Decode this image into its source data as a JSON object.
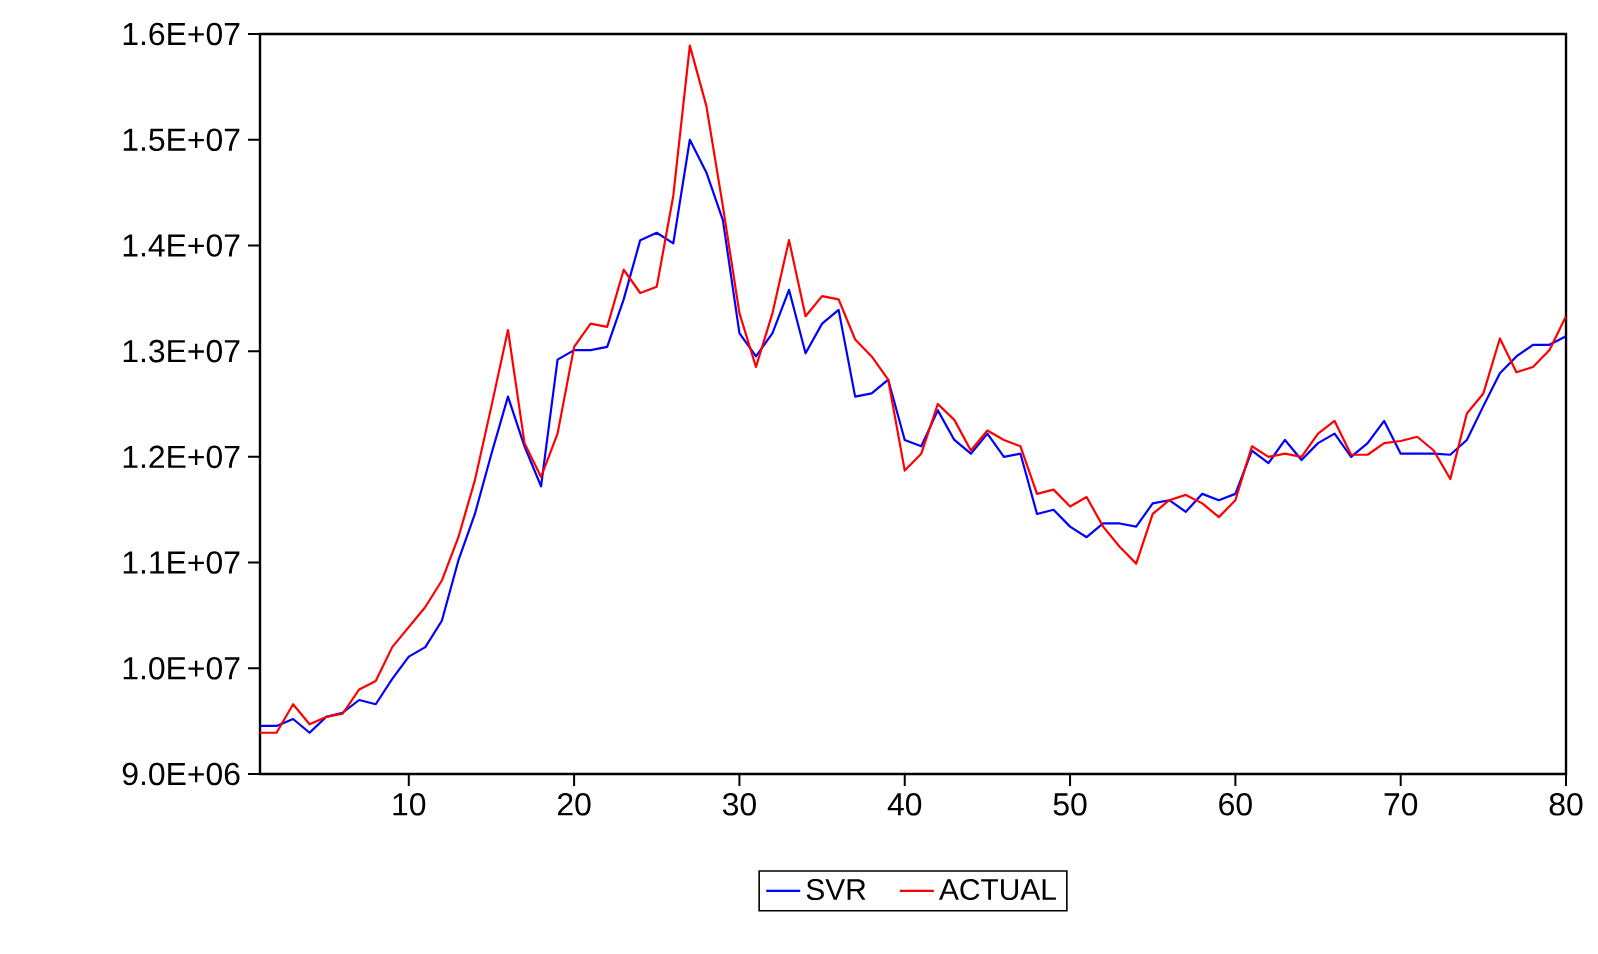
{
  "chart_data": {
    "type": "line",
    "x": [
      1,
      2,
      3,
      4,
      5,
      6,
      7,
      8,
      9,
      10,
      11,
      12,
      13,
      14,
      15,
      16,
      17,
      18,
      19,
      20,
      21,
      22,
      23,
      24,
      25,
      26,
      27,
      28,
      29,
      30,
      31,
      32,
      33,
      34,
      35,
      36,
      37,
      38,
      39,
      40,
      41,
      42,
      43,
      44,
      45,
      46,
      47,
      48,
      49,
      50,
      51,
      52,
      53,
      54,
      55,
      56,
      57,
      58,
      59,
      60,
      61,
      62,
      63,
      64,
      65,
      66,
      67,
      68,
      69,
      70,
      71,
      72,
      73,
      74,
      75,
      76,
      77,
      78,
      79,
      80
    ],
    "series": [
      {
        "name": "SVR",
        "color": "#0000ff",
        "values": [
          9455000,
          9455000,
          9520000,
          9390000,
          9540000,
          9580000,
          9700000,
          9660000,
          9900000,
          10110000,
          10200000,
          10450000,
          11020000,
          11460000,
          12030000,
          12570000,
          12100000,
          11720000,
          12920000,
          13010000,
          13010000,
          13040000,
          13490000,
          14050000,
          14120000,
          14020000,
          15000000,
          14690000,
          14240000,
          13170000,
          12950000,
          13170000,
          13580000,
          12980000,
          13260000,
          13390000,
          12570000,
          12600000,
          12730000,
          12160000,
          12100000,
          12440000,
          12160000,
          12030000,
          12220000,
          12000000,
          12030000,
          11460000,
          11500000,
          11340000,
          11240000,
          11370000,
          11370000,
          11340000,
          11560000,
          11590000,
          11480000,
          11650000,
          11590000,
          11650000,
          12060000,
          11940000,
          12160000,
          11970000,
          12130000,
          12220000,
          12000000,
          12130000,
          12340000,
          12030000,
          12030000,
          12030000,
          12020000,
          12160000,
          12480000,
          12790000,
          12950000,
          13060000,
          13060000,
          13140000
        ]
      },
      {
        "name": "ACTUAL",
        "color": "#ff0000",
        "values": [
          9390000,
          9390000,
          9660000,
          9470000,
          9540000,
          9570000,
          9800000,
          9880000,
          10200000,
          10390000,
          10580000,
          10830000,
          11240000,
          11780000,
          12480000,
          13200000,
          12130000,
          11810000,
          12220000,
          13040000,
          13260000,
          13230000,
          13770000,
          13550000,
          13610000,
          14470000,
          15890000,
          15320000,
          14370000,
          13360000,
          12850000,
          13360000,
          14050000,
          13330000,
          13520000,
          13490000,
          13110000,
          12950000,
          12730000,
          11870000,
          12030000,
          12500000,
          12350000,
          12060000,
          12250000,
          12160000,
          12100000,
          11650000,
          11690000,
          11530000,
          11620000,
          11340000,
          11150000,
          10990000,
          11460000,
          11590000,
          11640000,
          11560000,
          11430000,
          11590000,
          12100000,
          12000000,
          12030000,
          12000000,
          12220000,
          12340000,
          12020000,
          12020000,
          12130000,
          12150000,
          12190000,
          12060000,
          11790000,
          12410000,
          12600000,
          13120000,
          12800000,
          12850000,
          13010000,
          13330000
        ]
      }
    ],
    "xlim": [
      1,
      80
    ],
    "xticks": [
      10,
      20,
      30,
      40,
      50,
      60,
      70,
      80
    ],
    "ylim": [
      9000000,
      16000000
    ],
    "yticks": [
      {
        "value": 9000000,
        "label": "9.0E+06"
      },
      {
        "value": 10000000,
        "label": "1.0E+07"
      },
      {
        "value": 11000000,
        "label": "1.1E+07"
      },
      {
        "value": 12000000,
        "label": "1.2E+07"
      },
      {
        "value": 13000000,
        "label": "1.3E+07"
      },
      {
        "value": 14000000,
        "label": "1.4E+07"
      },
      {
        "value": 15000000,
        "label": "1.5E+07"
      },
      {
        "value": 16000000,
        "label": "1.6E+07"
      }
    ],
    "legend": "bottom",
    "grid": false,
    "marker": "none",
    "line_style": "solid"
  }
}
